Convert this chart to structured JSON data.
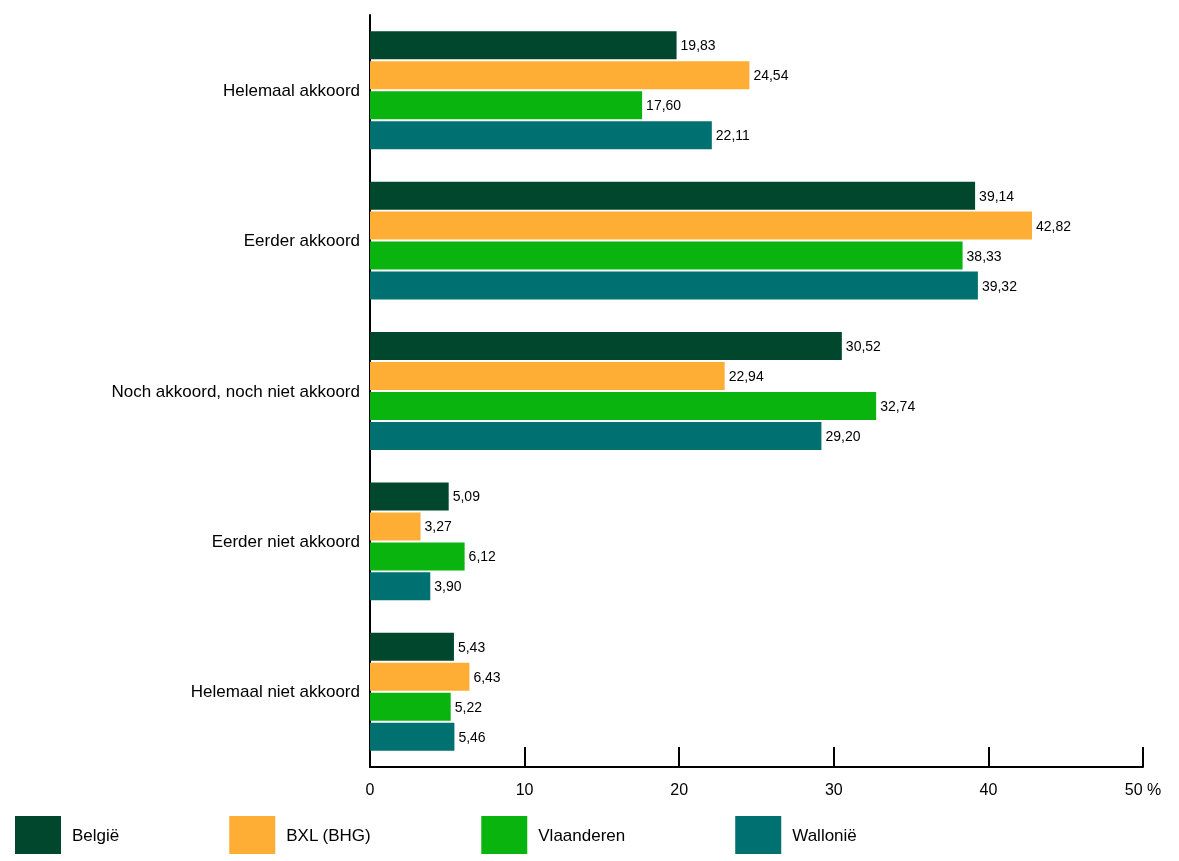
{
  "chart_data": {
    "type": "bar",
    "orientation": "horizontal",
    "categories": [
      "Helemaal akkoord",
      "Eerder akkoord",
      "Noch akkoord, noch niet akkoord",
      "Eerder niet akkoord",
      "Helemaal niet akkoord"
    ],
    "series": [
      {
        "name": "België",
        "color": "#00472e",
        "values": [
          19.83,
          39.14,
          30.52,
          5.09,
          5.43
        ],
        "value_labels": [
          "19,83",
          "39,14",
          "30,52",
          "5,09",
          "5,43"
        ]
      },
      {
        "name": "BXL (BHG)",
        "color": "#ffae35",
        "values": [
          24.54,
          42.82,
          22.94,
          3.27,
          6.43
        ],
        "value_labels": [
          "24,54",
          "42,82",
          "22,94",
          "3,27",
          "6,43"
        ]
      },
      {
        "name": "Vlaanderen",
        "color": "#0ab40e",
        "values": [
          17.6,
          38.33,
          32.74,
          6.12,
          5.22
        ],
        "value_labels": [
          "17,60",
          "38,33",
          "32,74",
          "6,12",
          "5,22"
        ]
      },
      {
        "name": "Wallonië",
        "color": "#007070",
        "values": [
          22.11,
          39.32,
          29.2,
          3.9,
          5.46
        ],
        "value_labels": [
          "22,11",
          "39,32",
          "29,20",
          "3,90",
          "5,46"
        ]
      }
    ],
    "xlim": [
      0,
      50
    ],
    "xticks": [
      0,
      10,
      20,
      30,
      40,
      {
        "value": 50,
        "label": "50 %"
      }
    ],
    "grid": false,
    "legend": "bottom"
  }
}
